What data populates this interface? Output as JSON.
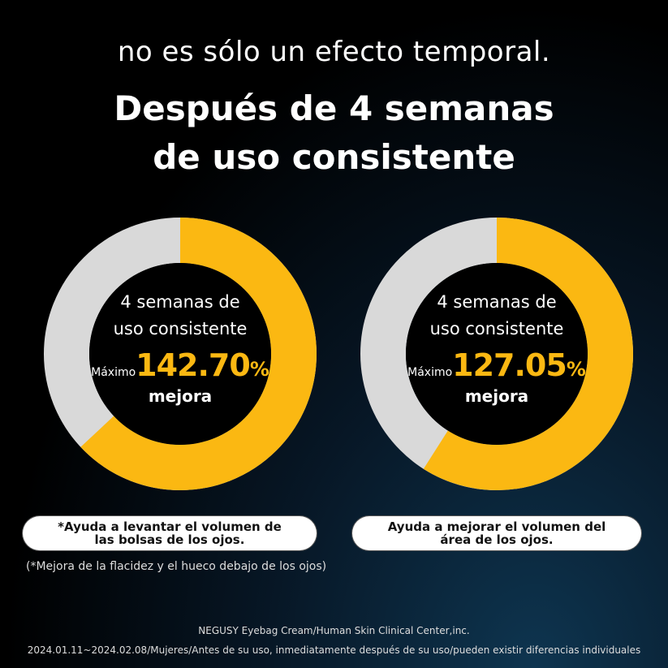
{
  "header": {
    "subtitle": "no es sólo un efecto temporal.",
    "title_line1": "Después de 4 semanas",
    "title_line2": "de uso consistente"
  },
  "colors": {
    "accent": "#fbb812",
    "track": "#d9d9d9",
    "background": "#000000"
  },
  "chart_data": [
    {
      "type": "pie",
      "variant": "donut",
      "center_text": [
        "4 semanas de",
        "uso consistente"
      ],
      "prefix": "Máximo",
      "value_label": "142.70",
      "unit": "%",
      "suffix": "mejora",
      "fill_fraction": 0.63,
      "caption": "*Ayuda a levantar el volumen de las bolsas de los ojos."
    },
    {
      "type": "pie",
      "variant": "donut",
      "center_text": [
        "4 semanas de",
        "uso consistente"
      ],
      "prefix": "Máximo",
      "value_label": "127.05",
      "unit": "%",
      "suffix": "mejora",
      "fill_fraction": 0.59,
      "caption": "Ayuda a mejorar el volumen del área de los ojos."
    }
  ],
  "note": "(*Mejora de la flacidez y el hueco debajo de los ojos)",
  "footer": {
    "line1": "NEGUSY Eyebag Cream/Human Skin Clinical Center,inc.",
    "line2": "2024.01.11~2024.02.08/Mujeres/Antes de su uso, inmediatamente después de su uso/pueden existir diferencias individuales"
  }
}
